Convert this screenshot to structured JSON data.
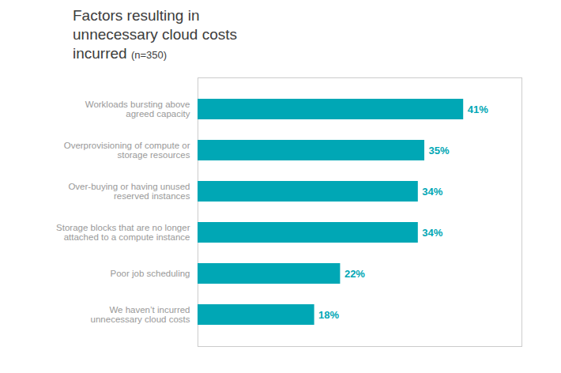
{
  "chart_data": {
    "type": "bar",
    "orientation": "horizontal",
    "title": "Factors resulting in\nunnecessary cloud costs\nincurred",
    "subtitle": "(n=350)",
    "categories": [
      "Workloads bursting above\nagreed capacity",
      "Overprovisioning of compute or\nstorage resources",
      "Over-buying or having unused\nreserved instances",
      "Storage blocks that are no longer\nattached to a compute instance",
      "Poor job scheduling",
      "We haven’t incurred\nunnecessary cloud costs"
    ],
    "values": [
      41,
      35,
      34,
      34,
      22,
      18
    ],
    "value_labels": [
      "41%",
      "35%",
      "34%",
      "34%",
      "22%",
      "18%"
    ],
    "data_labels": true,
    "color": "#00a7b5",
    "xlim": [
      0,
      50
    ],
    "xticks": [],
    "tick_labels": "y",
    "grid": false
  }
}
